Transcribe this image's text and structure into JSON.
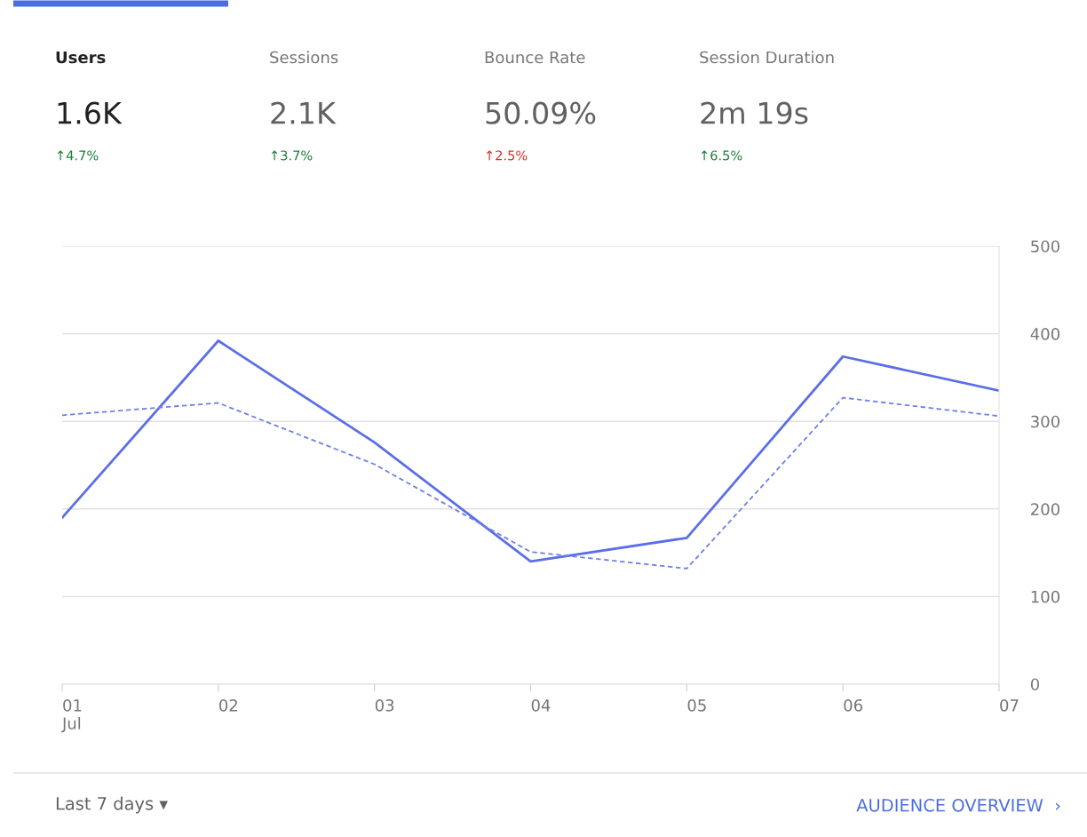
{
  "chart_data": [
    {
      "type": "other",
      "annotations": [
        "Users",
        "Sessions",
        "Bounce Rate",
        "Session Duration",
        "1.6K",
        "2.1K",
        "50.09%",
        "2m 19s",
        "↑4.7%",
        "↑3.7%",
        "↑2.5%",
        "↑6.5%"
      ],
      "colors": [
        "#212121",
        "#757575",
        "#757575",
        "#757575",
        "#212121",
        "#616161",
        "#616161",
        "#616161",
        "#188038",
        "#188038",
        "#d93025",
        "#188038"
      ]
    },
    {
      "type": "line",
      "categories": [
        "01\nJul",
        "02",
        "03",
        "04",
        "05",
        "06",
        "07"
      ],
      "series": [
        {
          "color": "#5b6ee8",
          "line_style": "solid",
          "values": [
            190,
            392,
            276,
            140,
            167,
            374,
            335
          ]
        },
        {
          "color": "#6f80ea",
          "line_style": "dashed",
          "values": [
            307,
            321,
            251,
            151,
            132,
            327,
            306
          ]
        }
      ],
      "ylim": [
        0,
        500
      ],
      "yticks": [
        0,
        100,
        200,
        300,
        400,
        500
      ],
      "grid": "y",
      "legend": false,
      "marker": "none",
      "annotations": [
        "Last 7 days ▾",
        "AUDIENCE OVERVIEW  ›"
      ]
    }
  ]
}
